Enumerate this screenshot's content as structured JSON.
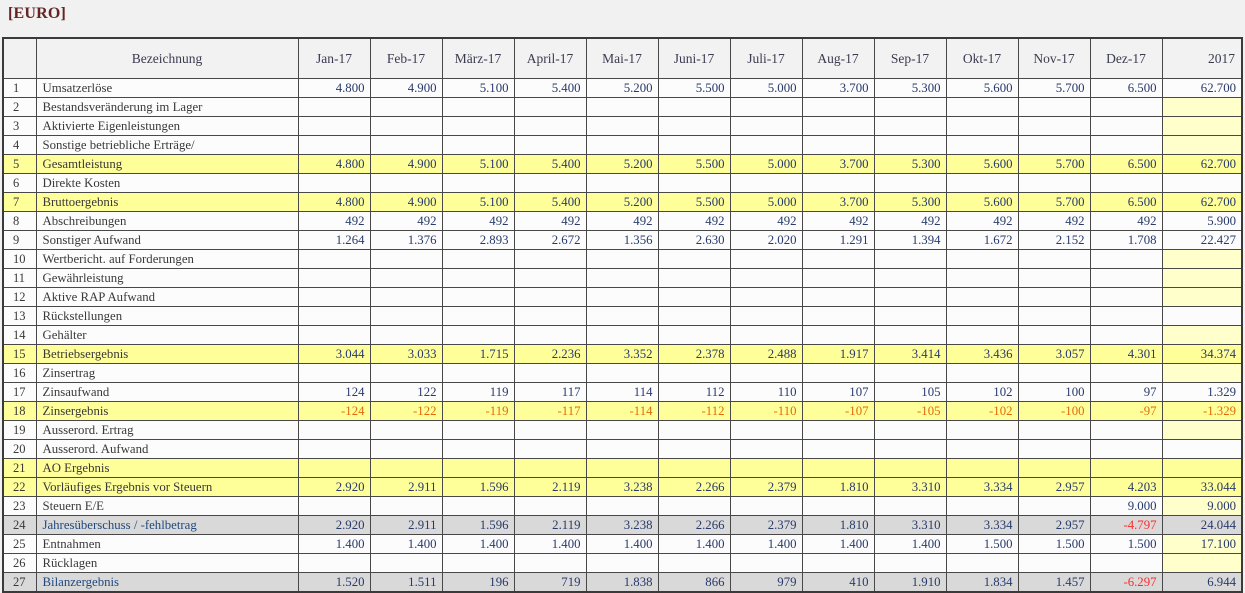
{
  "title": "[EURO]",
  "colors": {
    "highlight_yellow": "#FFFF99",
    "pale_yellow": "#FFFFCC",
    "gray_row": "#D9D9D9",
    "header_bg": "#F2F2F2",
    "number_text": "#283A6B",
    "label_text": "#3B3838",
    "blue_label_text": "#1F497D",
    "negative_orange": "#E26B0A",
    "negative_red": "#FF2A2A",
    "title_color": "#632423"
  },
  "table": {
    "columns": [
      "",
      "Bezeichnung",
      "Jan-17",
      "Feb-17",
      "März-17",
      "April-17",
      "Mai-17",
      "Juni-17",
      "Juli-17",
      "Aug-17",
      "Sep-17",
      "Okt-17",
      "Nov-17",
      "Dez-17",
      "2017"
    ],
    "rows": [
      {
        "num": "1",
        "label": "Umsatzerlöse",
        "values": [
          "4.800",
          "4.900",
          "5.100",
          "5.400",
          "5.200",
          "5.500",
          "5.000",
          "3.700",
          "5.300",
          "5.600",
          "5.700",
          "6.500"
        ],
        "total": "62.700",
        "style": "normal",
        "total_bg": "white",
        "neg": "orange"
      },
      {
        "num": "2",
        "label": "Bestandsveränderung im Lager",
        "values": [
          "",
          "",
          "",
          "",
          "",
          "",
          "",
          "",
          "",
          "",
          "",
          ""
        ],
        "total": "",
        "style": "normal",
        "total_bg": "pale",
        "neg": "orange"
      },
      {
        "num": "3",
        "label": "Aktivierte Eigenleistungen",
        "values": [
          "",
          "",
          "",
          "",
          "",
          "",
          "",
          "",
          "",
          "",
          "",
          ""
        ],
        "total": "",
        "style": "normal",
        "total_bg": "pale",
        "neg": "orange"
      },
      {
        "num": "4",
        "label": "Sonstige betriebliche Erträge/",
        "values": [
          "",
          "",
          "",
          "",
          "",
          "",
          "",
          "",
          "",
          "",
          "",
          ""
        ],
        "total": "",
        "style": "normal",
        "total_bg": "pale",
        "neg": "orange"
      },
      {
        "num": "5",
        "label": "Gesamtleistung",
        "values": [
          "4.800",
          "4.900",
          "5.100",
          "5.400",
          "5.200",
          "5.500",
          "5.000",
          "3.700",
          "5.300",
          "5.600",
          "5.700",
          "6.500"
        ],
        "total": "62.700",
        "style": "yellow",
        "total_bg": "yellow",
        "neg": "orange"
      },
      {
        "num": "6",
        "label": "Direkte Kosten",
        "values": [
          "",
          "",
          "",
          "",
          "",
          "",
          "",
          "",
          "",
          "",
          "",
          ""
        ],
        "total": "",
        "style": "normal",
        "total_bg": "white",
        "neg": "orange"
      },
      {
        "num": "7",
        "label": "Bruttoergebnis",
        "values": [
          "4.800",
          "4.900",
          "5.100",
          "5.400",
          "5.200",
          "5.500",
          "5.000",
          "3.700",
          "5.300",
          "5.600",
          "5.700",
          "6.500"
        ],
        "total": "62.700",
        "style": "yellow",
        "total_bg": "yellow",
        "neg": "orange"
      },
      {
        "num": "8",
        "label": "Abschreibungen",
        "values": [
          "492",
          "492",
          "492",
          "492",
          "492",
          "492",
          "492",
          "492",
          "492",
          "492",
          "492",
          "492"
        ],
        "total": "5.900",
        "style": "normal",
        "total_bg": "white",
        "neg": "orange"
      },
      {
        "num": "9",
        "label": "Sonstiger Aufwand",
        "values": [
          "1.264",
          "1.376",
          "2.893",
          "2.672",
          "1.356",
          "2.630",
          "2.020",
          "1.291",
          "1.394",
          "1.672",
          "2.152",
          "1.708"
        ],
        "total": "22.427",
        "style": "normal",
        "total_bg": "white",
        "neg": "orange"
      },
      {
        "num": "10",
        "label": "Wertbericht. auf Forderungen",
        "values": [
          "",
          "",
          "",
          "",
          "",
          "",
          "",
          "",
          "",
          "",
          "",
          ""
        ],
        "total": "",
        "style": "normal",
        "total_bg": "pale",
        "neg": "orange"
      },
      {
        "num": "11",
        "label": "Gewährleistung",
        "values": [
          "",
          "",
          "",
          "",
          "",
          "",
          "",
          "",
          "",
          "",
          "",
          ""
        ],
        "total": "",
        "style": "normal",
        "total_bg": "pale",
        "neg": "orange"
      },
      {
        "num": "12",
        "label": "Aktive RAP Aufwand",
        "values": [
          "",
          "",
          "",
          "",
          "",
          "",
          "",
          "",
          "",
          "",
          "",
          ""
        ],
        "total": "",
        "style": "normal",
        "total_bg": "pale",
        "neg": "orange"
      },
      {
        "num": "13",
        "label": "Rückstellungen",
        "values": [
          "",
          "",
          "",
          "",
          "",
          "",
          "",
          "",
          "",
          "",
          "",
          ""
        ],
        "total": "",
        "style": "normal",
        "total_bg": "white",
        "neg": "orange"
      },
      {
        "num": "14",
        "label": "Gehälter",
        "values": [
          "",
          "",
          "",
          "",
          "",
          "",
          "",
          "",
          "",
          "",
          "",
          ""
        ],
        "total": "",
        "style": "normal",
        "total_bg": "pale",
        "neg": "orange"
      },
      {
        "num": "15",
        "label": "Betriebsergebnis",
        "values": [
          "3.044",
          "3.033",
          "1.715",
          "2.236",
          "3.352",
          "2.378",
          "2.488",
          "1.917",
          "3.414",
          "3.436",
          "3.057",
          "4.301"
        ],
        "total": "34.374",
        "style": "yellow",
        "total_bg": "yellow",
        "neg": "orange"
      },
      {
        "num": "16",
        "label": "Zinsertrag",
        "values": [
          "",
          "",
          "",
          "",
          "",
          "",
          "",
          "",
          "",
          "",
          "",
          ""
        ],
        "total": "",
        "style": "normal",
        "total_bg": "pale",
        "neg": "orange"
      },
      {
        "num": "17",
        "label": "Zinsaufwand",
        "values": [
          "124",
          "122",
          "119",
          "117",
          "114",
          "112",
          "110",
          "107",
          "105",
          "102",
          "100",
          "97"
        ],
        "total": "1.329",
        "style": "normal",
        "total_bg": "white",
        "neg": "orange"
      },
      {
        "num": "18",
        "label": "Zinsergebnis",
        "values": [
          "-124",
          "-122",
          "-119",
          "-117",
          "-114",
          "-112",
          "-110",
          "-107",
          "-105",
          "-102",
          "-100",
          "-97"
        ],
        "total": "-1.329",
        "style": "yellow",
        "total_bg": "yellow",
        "neg": "orange"
      },
      {
        "num": "19",
        "label": "Ausserord. Ertrag",
        "values": [
          "",
          "",
          "",
          "",
          "",
          "",
          "",
          "",
          "",
          "",
          "",
          ""
        ],
        "total": "",
        "style": "normal",
        "total_bg": "pale",
        "neg": "orange"
      },
      {
        "num": "20",
        "label": "Ausserord. Aufwand",
        "values": [
          "",
          "",
          "",
          "",
          "",
          "",
          "",
          "",
          "",
          "",
          "",
          ""
        ],
        "total": "",
        "style": "normal",
        "total_bg": "white",
        "neg": "orange"
      },
      {
        "num": "21",
        "label": "AO Ergebnis",
        "values": [
          "",
          "",
          "",
          "",
          "",
          "",
          "",
          "",
          "",
          "",
          "",
          ""
        ],
        "total": "",
        "style": "yellow",
        "total_bg": "yellow",
        "neg": "orange"
      },
      {
        "num": "22",
        "label": "Vorläufiges Ergebnis vor Steuern",
        "values": [
          "2.920",
          "2.911",
          "1.596",
          "2.119",
          "3.238",
          "2.266",
          "2.379",
          "1.810",
          "3.310",
          "3.334",
          "2.957",
          "4.203"
        ],
        "total": "33.044",
        "style": "yellow",
        "total_bg": "yellow",
        "neg": "orange"
      },
      {
        "num": "23",
        "label": "Steuern E/E",
        "values": [
          "",
          "",
          "",
          "",
          "",
          "",
          "",
          "",
          "",
          "",
          "",
          "9.000"
        ],
        "total": "9.000",
        "style": "normal",
        "total_bg": "pale",
        "neg": "orange"
      },
      {
        "num": "24",
        "label": "Jahresüberschuss / -fehlbetrag",
        "values": [
          "2.920",
          "2.911",
          "1.596",
          "2.119",
          "3.238",
          "2.266",
          "2.379",
          "1.810",
          "3.310",
          "3.334",
          "2.957",
          "-4.797"
        ],
        "total": "24.044",
        "style": "gray",
        "total_bg": "gray",
        "neg": "red"
      },
      {
        "num": "25",
        "label": "Entnahmen",
        "values": [
          "1.400",
          "1.400",
          "1.400",
          "1.400",
          "1.400",
          "1.400",
          "1.400",
          "1.400",
          "1.400",
          "1.500",
          "1.500",
          "1.500"
        ],
        "total": "17.100",
        "style": "normal",
        "total_bg": "pale",
        "neg": "orange"
      },
      {
        "num": "26",
        "label": "Rücklagen",
        "values": [
          "",
          "",
          "",
          "",
          "",
          "",
          "",
          "",
          "",
          "",
          "",
          ""
        ],
        "total": "",
        "style": "normal",
        "total_bg": "pale",
        "neg": "orange"
      },
      {
        "num": "27",
        "label": "Bilanzergebnis",
        "values": [
          "1.520",
          "1.511",
          "196",
          "719",
          "1.838",
          "866",
          "979",
          "410",
          "1.910",
          "1.834",
          "1.457",
          "-6.297"
        ],
        "total": "6.944",
        "style": "gray",
        "total_bg": "gray",
        "neg": "red"
      }
    ]
  }
}
